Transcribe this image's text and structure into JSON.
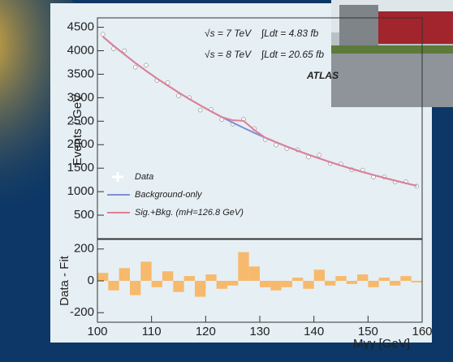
{
  "chart_data": [
    {
      "type": "line",
      "y_label": "Events / GeV",
      "annotations": [
        "√s = 7 TeV",
        "∫Ldt = 4.83 fb",
        "√s = 8 TeV",
        "∫Ldt = 20.65 fb",
        "ATLAS"
      ],
      "x": [
        101,
        103,
        105,
        107,
        109,
        111,
        113,
        115,
        117,
        119,
        121,
        123,
        125,
        127,
        129,
        131,
        133,
        135,
        137,
        139,
        141,
        143,
        145,
        147,
        149,
        151,
        153,
        155,
        157,
        159
      ],
      "series": [
        {
          "name": "Data",
          "mode": "markers",
          "color": "#ffffff",
          "values": [
            4350,
            4045,
            4000,
            3651,
            3691,
            3369,
            3319,
            3041,
            3001,
            2737,
            2749,
            2537,
            2440,
            2538,
            2342,
            2110,
            1993,
            1920,
            1892,
            1737,
            1777,
            1600,
            1586,
            1466,
            1459,
            1315,
            1314,
            1205,
            1209,
            1116
          ]
        },
        {
          "name": "Background-only",
          "mode": "lines",
          "color": "#7f8fd6",
          "values": [
            4300,
            4105,
            3920,
            3741,
            3571,
            3409,
            3259,
            3111,
            2971,
            2837,
            2709,
            2587,
            2470,
            2358,
            2252,
            2150,
            2053,
            1960,
            1872,
            1787,
            1707,
            1630,
            1556,
            1486,
            1419,
            1355,
            1294,
            1235,
            1179,
            1126
          ]
        },
        {
          "name": "Sig.+Bkg. (mH=126.8 GeV)",
          "mode": "lines",
          "color": "#e07f96",
          "values": [
            4300,
            4105,
            3920,
            3741,
            3571,
            3409,
            3259,
            3111,
            2971,
            2837,
            2709,
            2587,
            2520,
            2508,
            2312,
            2150,
            2053,
            1960,
            1872,
            1787,
            1707,
            1630,
            1556,
            1486,
            1419,
            1355,
            1294,
            1235,
            1179,
            1126
          ]
        }
      ],
      "xlim": [
        100,
        160
      ],
      "ylim": [
        0,
        4700
      ],
      "yticks": [
        500,
        1000,
        1500,
        2000,
        2500,
        3000,
        3500,
        4000,
        4500
      ]
    },
    {
      "type": "histogram",
      "y_label": "Data - Fit",
      "x_label": "Mγγ [GeV]",
      "bins": [
        100,
        102,
        104,
        106,
        108,
        110,
        112,
        114,
        116,
        118,
        120,
        122,
        124,
        126,
        128,
        130,
        132,
        134,
        136,
        138,
        140,
        142,
        144,
        146,
        148,
        150,
        152,
        154,
        156,
        158,
        160
      ],
      "values": [
        50,
        -60,
        80,
        -90,
        120,
        -40,
        60,
        -70,
        30,
        -100,
        40,
        -50,
        -30,
        180,
        90,
        -40,
        -60,
        -40,
        20,
        -50,
        70,
        -30,
        30,
        -20,
        40,
        -40,
        20,
        -30,
        30,
        -10
      ],
      "color": "#f7b96c",
      "xlim": [
        100,
        160
      ],
      "xticks": [
        100,
        110,
        120,
        130,
        140,
        150,
        160
      ],
      "ylim": [
        -260,
        260
      ],
      "yticks": [
        200,
        0,
        -200
      ]
    }
  ]
}
